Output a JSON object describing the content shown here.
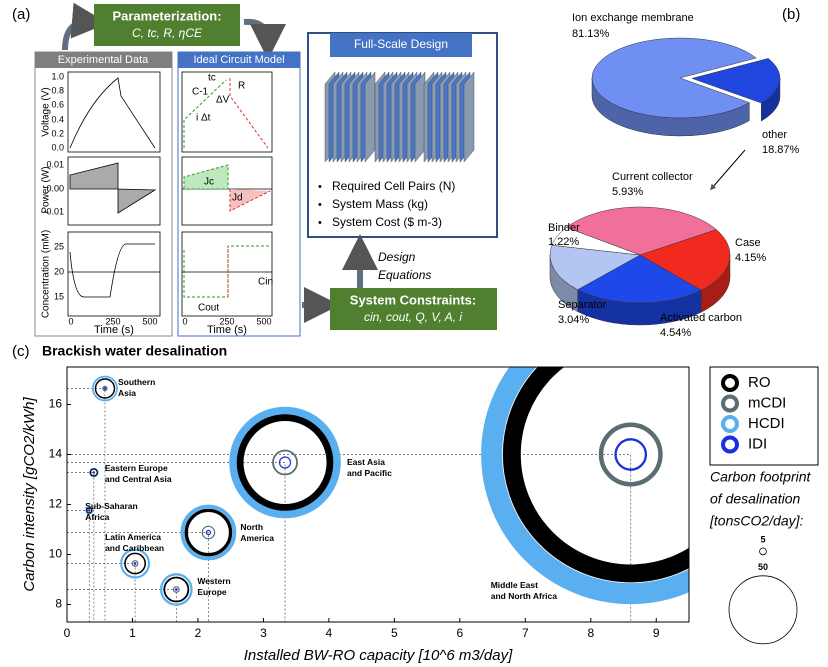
{
  "panel_a": {
    "label": "(a)",
    "parameterization": {
      "title": "Parameterization:",
      "params": "C, tc, R, ηCE"
    },
    "experimental": {
      "title": "Experimental Data",
      "voltage_label": "Voltage (V)",
      "voltage_ticks": [
        "0.0",
        "0.2",
        "0.4",
        "0.6",
        "0.8",
        "1.0"
      ],
      "power_label": "Power (W)",
      "power_ticks": [
        "0.01",
        "0.00",
        "-0.01"
      ],
      "concentration_label": "Concentration (mM)",
      "concentration_ticks": [
        "25",
        "20",
        "15"
      ],
      "time_ticks": [
        "0",
        "250",
        "500"
      ],
      "time_label": "Time (s)"
    },
    "circuit": {
      "title": "Ideal Circuit Model",
      "annotations": [
        "tc",
        "R",
        "C-1",
        "ΔV",
        "i Δt",
        "Jc",
        "Jd",
        "Cin",
        "Cout"
      ],
      "time_ticks": [
        "0",
        "250",
        "500"
      ],
      "time_label": "Time (s)"
    },
    "design": {
      "title": "Full-Scale Design",
      "outputs": [
        "Required Cell Pairs (N)",
        "System Mass (kg)",
        "System Cost ($ m-3)"
      ],
      "equations": [
        "Design",
        "Equations"
      ]
    },
    "constraints": {
      "title": "System Constraints:",
      "params": "cin, cout, Q, V, A, i"
    }
  },
  "chart_data": [
    {
      "type": "pie",
      "panel_label": "(b)",
      "categories": [
        "Ion exchange membrane",
        "other"
      ],
      "values": [
        81.13,
        18.87
      ],
      "value_labels": [
        "81.13%",
        "18.87%"
      ],
      "colors": [
        "#6f8ff2",
        "#2046e0"
      ]
    },
    {
      "type": "pie",
      "categories": [
        "Current collector",
        "Case",
        "Activated carbon",
        "Separator",
        "Binder"
      ],
      "values": [
        5.93,
        4.15,
        4.54,
        3.04,
        1.22
      ],
      "value_labels": [
        "5.93%",
        "4.15%",
        "4.54%",
        "3.04%",
        "1.22%"
      ],
      "colors": [
        "#f0709a",
        "#f02a1e",
        "#1e48e8",
        "#b3c6f2",
        "#ffffff"
      ]
    },
    {
      "type": "bubble",
      "panel_label": "(c)",
      "title": "Brackish water desalination",
      "x_label": "Installed BW-RO capacity [10^6 m3/day]",
      "y_label": "Carbon intensity [gCO2/kWh]",
      "xlim": [
        0,
        9.5
      ],
      "ylim": [
        7.3,
        17.5
      ],
      "xticks": [
        0,
        1,
        2,
        3,
        4,
        5,
        6,
        7,
        8,
        9
      ],
      "yticks": [
        8,
        10,
        12,
        14,
        16
      ],
      "regions": [
        {
          "label_lines": [
            "Southern",
            "Asia"
          ],
          "x": 0.58,
          "y": 16.64
        },
        {
          "label_lines": [
            "Eastern Europe",
            "and Central Asia"
          ],
          "x": 0.41,
          "y": 13.28
        },
        {
          "label_lines": [
            "Sub-Saharan",
            "Africa"
          ],
          "x": 0.34,
          "y": 11.76
        },
        {
          "label_lines": [
            "Latin America",
            "and Caribbean"
          ],
          "x": 1.04,
          "y": 9.64
        },
        {
          "label_lines": [
            "North",
            "America"
          ],
          "x": 2.16,
          "y": 10.88
        },
        {
          "label_lines": [
            "Western",
            "Europe"
          ],
          "x": 1.67,
          "y": 8.6
        },
        {
          "label_lines": [
            "East Asia",
            "and Pacific"
          ],
          "x": 3.33,
          "y": 13.68
        },
        {
          "label_lines": [
            "Middle East",
            "and North Africa"
          ],
          "x": 8.61,
          "y": 14.0
        }
      ],
      "series": [
        {
          "name": "RO",
          "color": "#000000",
          "sizes": [
            15,
            6,
            4.5,
            16,
            35,
            19,
            71,
            188
          ]
        },
        {
          "name": "mCDI",
          "color": "#5a6e72",
          "sizes": [
            4,
            1.5,
            1.5,
            5,
            10,
            5,
            19,
            47
          ]
        },
        {
          "name": "HCDI",
          "color": "#5aaff0",
          "sizes": [
            19,
            7,
            6,
            22,
            41,
            24,
            82,
            220
          ]
        },
        {
          "name": "IDI",
          "color": "#1a2fe0",
          "sizes": [
            2,
            1,
            1,
            2,
            4,
            2,
            9,
            24
          ]
        }
      ],
      "size_legend": {
        "title_lines": [
          "Carbon footprint",
          "of desalination",
          "[tonsCO2/day]:"
        ],
        "values": [
          5,
          50
        ]
      }
    }
  ]
}
